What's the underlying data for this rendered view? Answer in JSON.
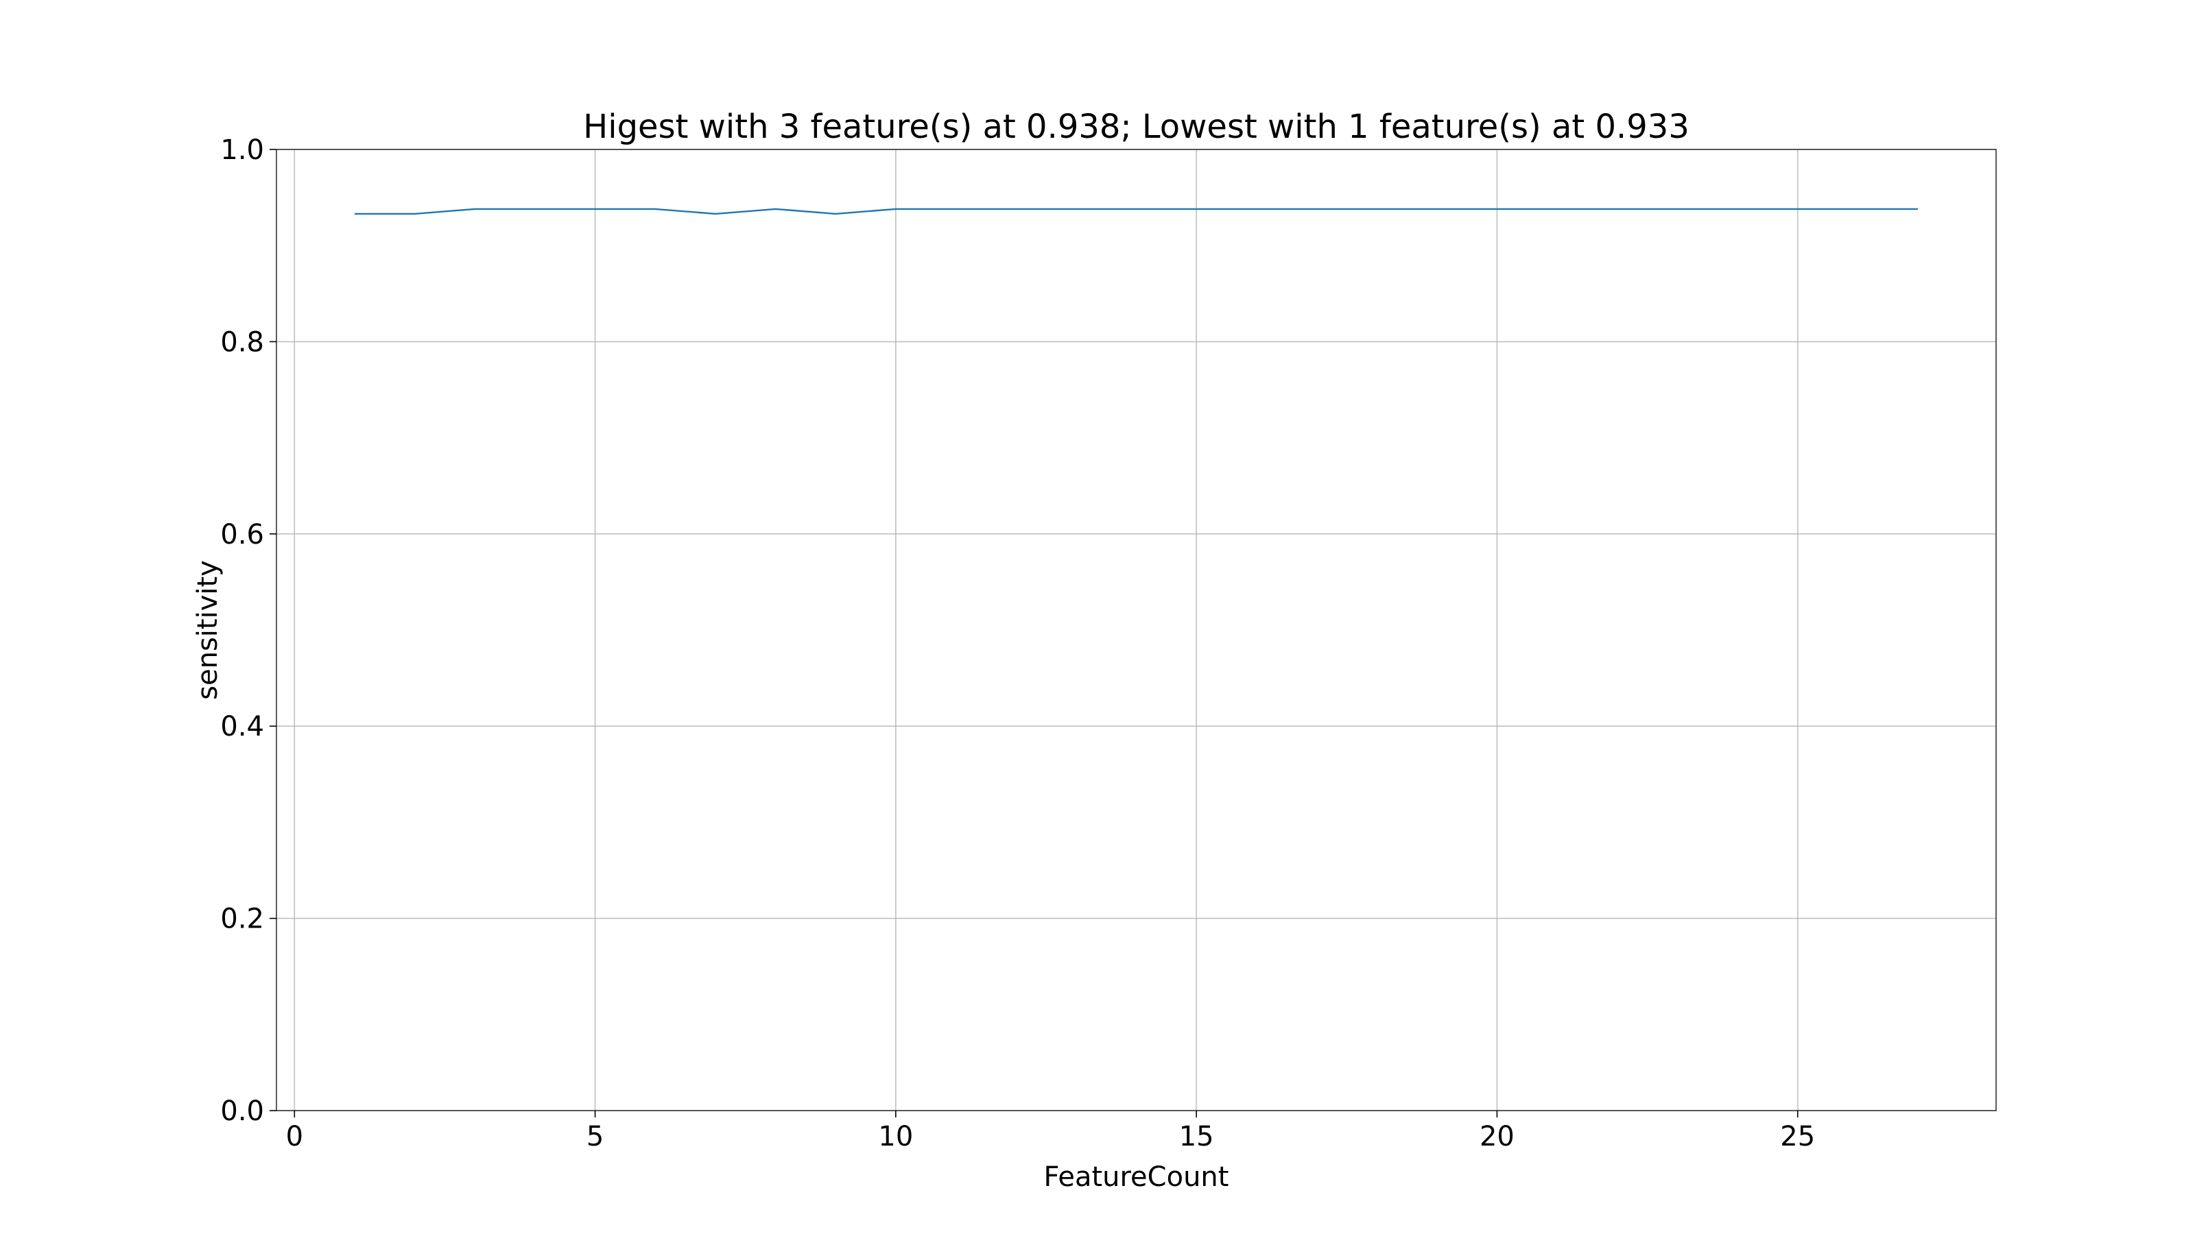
{
  "chart_data": {
    "type": "line",
    "title": "Higest with 3 feature(s) at 0.938; Lowest with 1 feature(s) at 0.933",
    "xlabel": "FeatureCount",
    "ylabel": "sensitivity",
    "xlim": [
      -0.3,
      28.3
    ],
    "ylim": [
      0.0,
      1.0
    ],
    "xticks": [
      0,
      5,
      10,
      15,
      20,
      25
    ],
    "yticks": [
      0.0,
      0.2,
      0.4,
      0.6,
      0.8,
      1.0
    ],
    "grid": true,
    "legend": null,
    "series": [
      {
        "color": "#1f77b4",
        "x": [
          1,
          2,
          3,
          4,
          5,
          6,
          7,
          8,
          9,
          10,
          11,
          12,
          13,
          14,
          15,
          16,
          17,
          18,
          19,
          20,
          21,
          22,
          23,
          24,
          25,
          26,
          27
        ],
        "values": [
          0.933,
          0.933,
          0.938,
          0.938,
          0.938,
          0.938,
          0.933,
          0.938,
          0.933,
          0.938,
          0.938,
          0.938,
          0.938,
          0.938,
          0.938,
          0.938,
          0.938,
          0.938,
          0.938,
          0.938,
          0.938,
          0.938,
          0.938,
          0.938,
          0.938,
          0.938,
          0.938
        ]
      }
    ]
  }
}
